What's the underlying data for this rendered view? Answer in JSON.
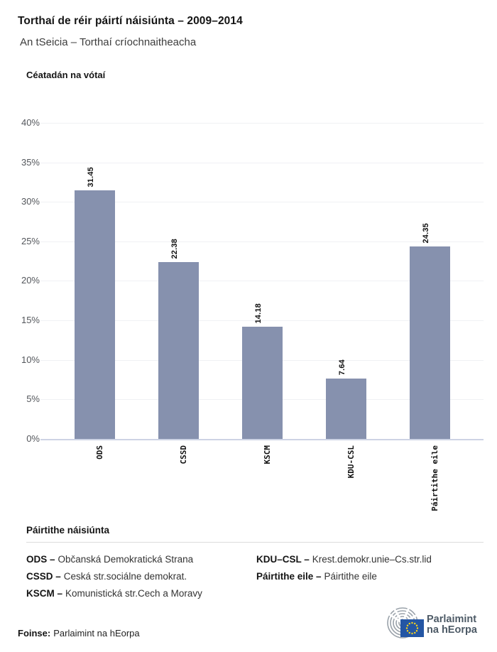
{
  "chart_data": {
    "type": "bar",
    "title": "Torthaí de réir páirtí náisiúnta – 2009–2014",
    "subtitle": "An tSeicia – Torthaí críochnaitheacha",
    "ylabel": "Céatadán na vótaí",
    "xlabel": "",
    "categories": [
      "ODS",
      "CSSD",
      "KSCM",
      "KDU-CSL",
      "Páirtithe eile"
    ],
    "values": [
      31.45,
      22.38,
      14.18,
      7.64,
      24.35
    ],
    "y_ticks": [
      "40%",
      "35%",
      "30%",
      "25%",
      "20%",
      "15%",
      "10%",
      "5%",
      "0%"
    ],
    "ylim": [
      0,
      40
    ],
    "grid": true,
    "legend_position": "none",
    "bar_color": "#8691AE"
  },
  "legend": {
    "heading": "Páirtithe náisiúnta",
    "items": [
      {
        "term": "ODS –",
        "desc": "Občanská Demokratická Strana"
      },
      {
        "term": "CSSD –",
        "desc": "Ceská str.sociálne demokrat."
      },
      {
        "term": "KSCM –",
        "desc": "Komunistická str.Cech a Moravy"
      },
      {
        "term": "KDU–CSL –",
        "desc": "Krest.demokr.unie–Cs.str.lid"
      },
      {
        "term": "Páirtithe eile –",
        "desc": "Páirtithe eile"
      }
    ]
  },
  "footer": {
    "source_label": "Foinse:",
    "source_value": "Parlaimint na hEorpa",
    "logo_line1": "Parlaimint",
    "logo_line2": "na hEorpa",
    "logo_text_color": "#4D5A66",
    "flag_color": "#2456A4",
    "star_color": "#FFD617",
    "hemicycle_color": "#9AA2AA"
  }
}
